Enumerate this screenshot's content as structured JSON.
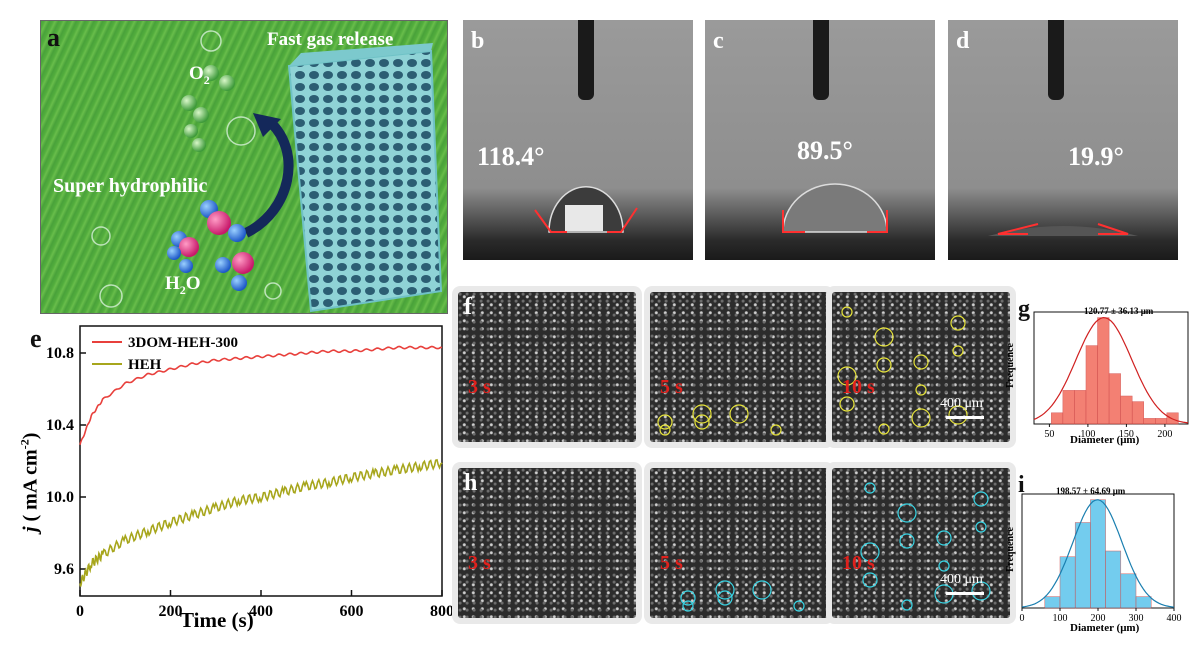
{
  "panel_a": {
    "label": "a",
    "title": "Fast gas release",
    "o2": "O",
    "o2_sub": "2",
    "h2o_h": "H",
    "h2o_sub": "2",
    "h2o_o": "O",
    "hydrophilic": "Super hydrophilic"
  },
  "contact_angles": [
    {
      "label": "b",
      "angle": "118.4°"
    },
    {
      "label": "c",
      "angle": "89.5°"
    },
    {
      "label": "d",
      "angle": "19.9°"
    }
  ],
  "bubble_rows": [
    {
      "label": "f",
      "times": [
        "3 s",
        "5 s",
        "10 s"
      ],
      "scale": "400 μm"
    },
    {
      "label": "h",
      "times": [
        "3 s",
        "5 s",
        "10 s"
      ],
      "scale": "400 μm"
    }
  ],
  "chart_data": [
    {
      "type": "line",
      "panel": "e",
      "xlabel": "Time (s)",
      "ylabel_italic": "j",
      "ylabel_rest": " ( mA cm",
      "ylabel_sup": "-2",
      "ylabel_close": ")",
      "xlim": [
        0,
        800
      ],
      "ylim": [
        9.45,
        10.95
      ],
      "xticks": [
        "0",
        "200",
        "400",
        "600",
        "800"
      ],
      "yticks": [
        "9.6",
        "10.0",
        "10.4",
        "10.8"
      ],
      "legend_placement": "top-left",
      "series": [
        {
          "name": "3DOM-HEH-300",
          "color": "#e8403c",
          "x": [
            0,
            25,
            50,
            100,
            150,
            200,
            250,
            300,
            350,
            400,
            450,
            500,
            550,
            600,
            650,
            700,
            750,
            800
          ],
          "y": [
            10.29,
            10.45,
            10.54,
            10.63,
            10.68,
            10.71,
            10.74,
            10.76,
            10.77,
            10.78,
            10.79,
            10.8,
            10.81,
            10.81,
            10.82,
            10.83,
            10.83,
            10.83
          ]
        },
        {
          "name": "HEH",
          "color": "#a7a61c",
          "x": [
            0,
            25,
            50,
            100,
            150,
            200,
            250,
            300,
            350,
            400,
            450,
            500,
            550,
            600,
            650,
            700,
            750,
            800
          ],
          "y": [
            9.52,
            9.63,
            9.68,
            9.76,
            9.81,
            9.86,
            9.9,
            9.94,
            9.98,
            10.0,
            10.03,
            10.06,
            10.08,
            10.11,
            10.13,
            10.15,
            10.17,
            10.19
          ]
        }
      ]
    },
    {
      "type": "bar",
      "panel": "g",
      "annotation": "120.77 ± 36.13 μm",
      "xlabel": "Diameter (μm)",
      "ylabel": "Frequence",
      "xlim": [
        30,
        230
      ],
      "xticks": [
        "50",
        "100",
        "150",
        "200"
      ],
      "bin_width": 15,
      "bins": [
        60,
        75,
        90,
        105,
        120,
        135,
        150,
        165,
        180,
        195,
        210
      ],
      "values": [
        0.1,
        0.3,
        0.3,
        0.7,
        0.95,
        0.45,
        0.25,
        0.2,
        0.05,
        0.05,
        0.1
      ],
      "fit": {
        "mean": 120.77,
        "sd": 36.13
      },
      "color": "#f26b5b"
    },
    {
      "type": "bar",
      "panel": "i",
      "annotation": "198.57 ± 64.69 μm",
      "xlabel": "Diameter (μm)",
      "ylabel": "Frequence",
      "xlim": [
        0,
        400
      ],
      "xticks": [
        "0",
        "100",
        "200",
        "300",
        "400"
      ],
      "bin_width": 40,
      "bins": [
        80,
        120,
        160,
        200,
        240,
        280,
        320
      ],
      "values": [
        0.1,
        0.45,
        0.75,
        0.95,
        0.5,
        0.3,
        0.1
      ],
      "fit": {
        "mean": 198.57,
        "sd": 64.69
      },
      "color": "#5bc4ec"
    }
  ]
}
